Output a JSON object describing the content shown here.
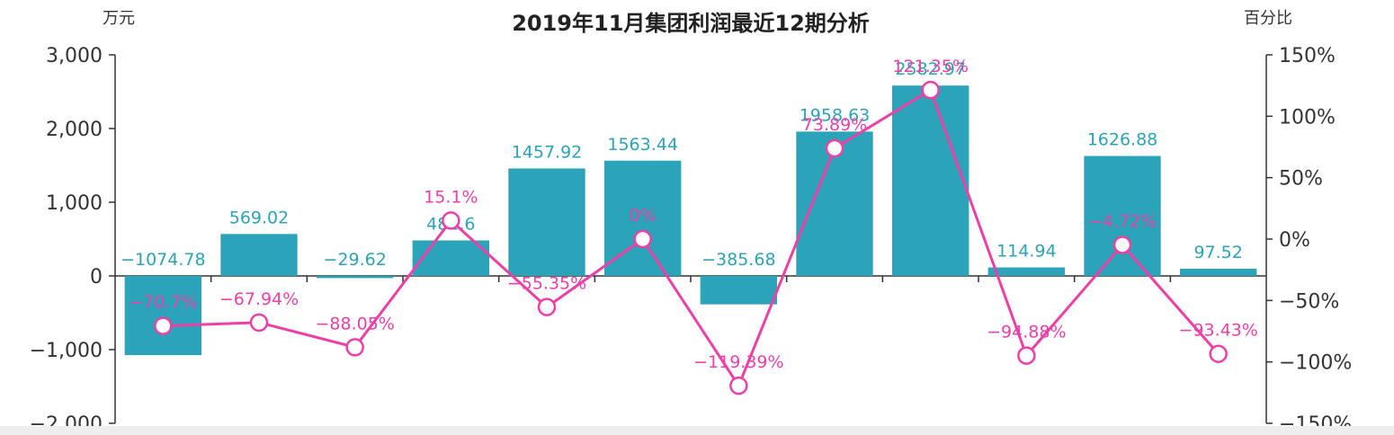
{
  "chart_data": {
    "type": "bar",
    "title": "2019年11月集团利润最近12期分析",
    "left_axis": {
      "unit": "万元",
      "ylim": [
        -2000,
        3000
      ],
      "ticks": [
        "3,000",
        "2,000",
        "1,000",
        "0",
        "−1,000",
        "−2,000"
      ],
      "tick_values": [
        3000,
        2000,
        1000,
        0,
        -1000,
        -2000
      ]
    },
    "right_axis": {
      "unit": "百分比",
      "ylim": [
        -150,
        150
      ],
      "ticks": [
        "150%",
        "100%",
        "50%",
        "0%",
        "−50%",
        "−100%",
        "−150%"
      ],
      "tick_values": [
        150,
        100,
        50,
        0,
        -50,
        -100,
        -150
      ]
    },
    "categories": [
      "",
      "",
      "",
      "",
      "",
      "",
      "",
      "",
      "",
      "",
      "",
      ""
    ],
    "series": [
      {
        "kind": "bar",
        "color": "#2ba3b8",
        "values": [
          -1074.78,
          569.02,
          -29.62,
          481.6,
          1457.92,
          1563.44,
          -385.68,
          1958.63,
          2582.97,
          114.94,
          1626.88,
          97.52
        ],
        "labels": [
          "−1074.78",
          "569.02",
          "−29.62",
          "481.6",
          "1457.92",
          "1563.44",
          "−385.68",
          "1958.63",
          "2582.97",
          "114.94",
          "1626.88",
          "97.52"
        ]
      },
      {
        "kind": "line",
        "color": "#ee3fa8",
        "values": [
          -70.7,
          -67.94,
          -88.05,
          15.1,
          -55.35,
          0,
          -119.39,
          73.89,
          121.35,
          -94.88,
          -4.72,
          -93.43
        ],
        "labels": [
          "−70.7%",
          "−67.94%",
          "−88.05%",
          "15.1%",
          "−55.35%",
          "0%",
          "−119.39%",
          "73.89%",
          "121.35%",
          "−94.88%",
          "−4.72%",
          "−93.43%"
        ]
      }
    ],
    "grid": false,
    "legend": "none"
  }
}
